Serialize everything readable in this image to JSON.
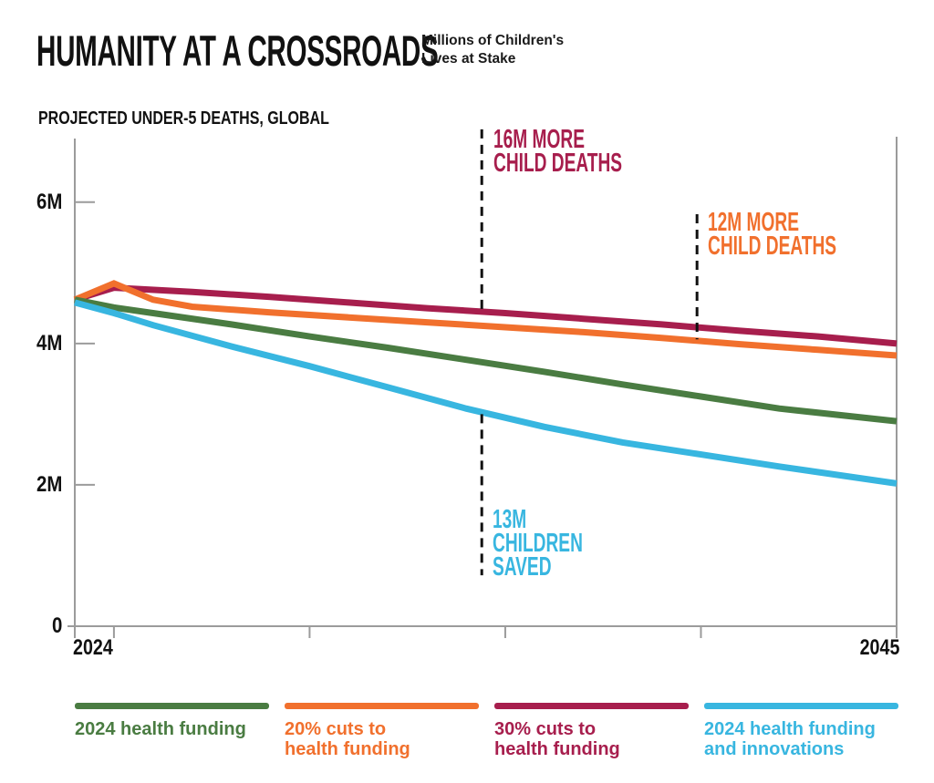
{
  "header": {
    "title": "HUMANITY AT A CROSSROADS",
    "subtitle_lines": [
      "Millions of Children's",
      "Lives at Stake"
    ]
  },
  "section": {
    "label": "PROJECTED UNDER-5 DEATHS, GLOBAL"
  },
  "axes": {
    "y_tick_labels": [
      "6M",
      "4M",
      "2M",
      "0"
    ],
    "x_left_label": "2024",
    "x_right_label": "2045"
  },
  "colors": {
    "green": "#4a7c42",
    "orange": "#f1702d",
    "crimson": "#a71e4d",
    "cyan": "#38b6e0",
    "axis": "#9b9b9b",
    "ink": "#111111"
  },
  "legend": {
    "items": [
      {
        "lines": [
          "2024 health funding",
          ""
        ],
        "color": "#4a7c42"
      },
      {
        "lines": [
          "20% cuts to",
          "health funding"
        ],
        "color": "#f1702d"
      },
      {
        "lines": [
          "30% cuts to",
          "health funding"
        ],
        "color": "#a71e4d"
      },
      {
        "lines": [
          "2024 health funding",
          "and innovations"
        ],
        "color": "#38b6e0"
      }
    ]
  },
  "chart_data": {
    "type": "line",
    "title": "HUMANITY AT A CROSSROADS",
    "subtitle": "Millions of Children's Lives at Stake",
    "axis_title": "PROJECTED UNDER-5 DEATHS, GLOBAL",
    "unit": "millions of under-5 deaths per year",
    "x_range": [
      2024,
      2045
    ],
    "ylim": [
      0,
      6.9
    ],
    "y_tick_values": [
      2,
      4,
      6
    ],
    "y_tick_labels": [
      "2M",
      "4M",
      "6M"
    ],
    "x_ticks": [
      2025,
      2030,
      2035,
      2040,
      2045
    ],
    "x_tick_labeled": [
      "2024",
      "2045"
    ],
    "grid": false,
    "legend_position": "bottom",
    "series": [
      {
        "name": "30% cuts to health funding",
        "color": "#a71e4d",
        "points": [
          [
            2024,
            4.62
          ],
          [
            2025,
            4.79
          ],
          [
            2027,
            4.73
          ],
          [
            2029,
            4.66
          ],
          [
            2031,
            4.58
          ],
          [
            2033,
            4.5
          ],
          [
            2035,
            4.43
          ],
          [
            2037,
            4.35
          ],
          [
            2039,
            4.27
          ],
          [
            2041,
            4.18
          ],
          [
            2043,
            4.1
          ],
          [
            2045,
            4.0
          ]
        ]
      },
      {
        "name": "20% cuts to health funding",
        "color": "#f1702d",
        "points": [
          [
            2024,
            4.62
          ],
          [
            2025,
            4.85
          ],
          [
            2026,
            4.62
          ],
          [
            2027,
            4.52
          ],
          [
            2029,
            4.44
          ],
          [
            2031,
            4.37
          ],
          [
            2033,
            4.3
          ],
          [
            2035,
            4.23
          ],
          [
            2037,
            4.16
          ],
          [
            2039,
            4.08
          ],
          [
            2041,
            3.99
          ],
          [
            2043,
            3.91
          ],
          [
            2045,
            3.83
          ]
        ]
      },
      {
        "name": "2024 health funding",
        "color": "#4a7c42",
        "points": [
          [
            2024,
            4.62
          ],
          [
            2025,
            4.51
          ],
          [
            2026,
            4.43
          ],
          [
            2028,
            4.27
          ],
          [
            2030,
            4.1
          ],
          [
            2032,
            3.94
          ],
          [
            2034,
            3.77
          ],
          [
            2036,
            3.6
          ],
          [
            2038,
            3.42
          ],
          [
            2040,
            3.25
          ],
          [
            2042,
            3.08
          ],
          [
            2045,
            2.9
          ]
        ]
      },
      {
        "name": "2024 health funding and innovations",
        "color": "#38b6e0",
        "points": [
          [
            2024,
            4.58
          ],
          [
            2025,
            4.43
          ],
          [
            2026,
            4.26
          ],
          [
            2028,
            3.96
          ],
          [
            2030,
            3.68
          ],
          [
            2032,
            3.38
          ],
          [
            2034,
            3.08
          ],
          [
            2036,
            2.82
          ],
          [
            2038,
            2.6
          ],
          [
            2040,
            2.43
          ],
          [
            2042,
            2.26
          ],
          [
            2045,
            2.02
          ]
        ]
      }
    ],
    "annotations": [
      {
        "text": "16M MORE CHILD DEATHS",
        "lines": [
          "16M MORE",
          "CHILD DEATHS",
          ""
        ],
        "color": "#a71e4d",
        "x_year": 2034.4,
        "dash_from": 7.03,
        "dash_to": 4.45
      },
      {
        "text": "12M MORE CHILD DEATHS",
        "lines": [
          "12M MORE",
          "CHILD DEATHS",
          ""
        ],
        "color": "#f1702d",
        "x_year": 2039.9,
        "dash_from": 5.83,
        "dash_to": 4.06
      },
      {
        "text": "13M CHILDREN SAVED",
        "lines": [
          "13M",
          "CHILDREN",
          "SAVED"
        ],
        "color": "#38b6e0",
        "x_year": 2034.4,
        "dash_from": 3.0,
        "dash_to": 0.72
      }
    ]
  }
}
